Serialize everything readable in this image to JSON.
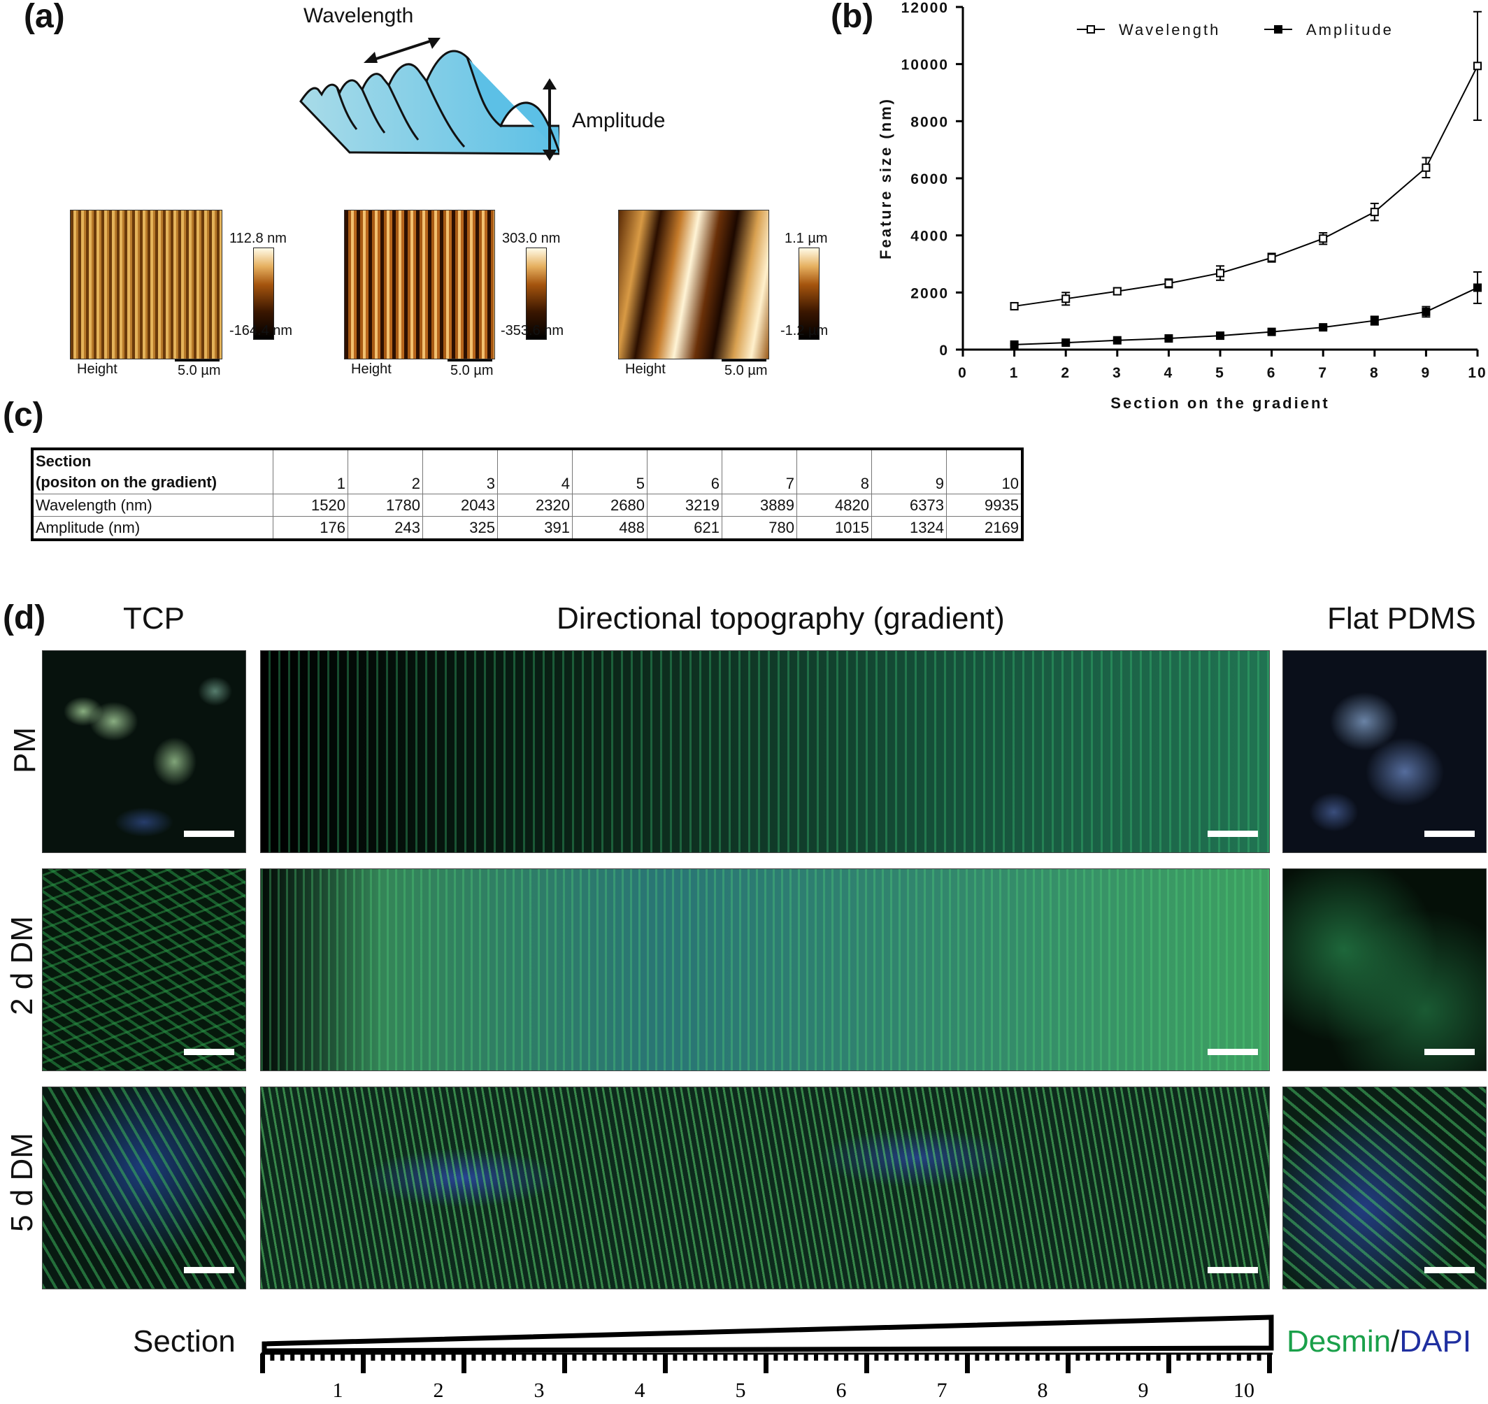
{
  "panel_a": {
    "label": "(a)",
    "schematic": {
      "wavelength_label": "Wavelength",
      "amplitude_label": "Amplitude"
    },
    "afm_images": [
      {
        "max_label": "112.8 nm",
        "min_label": "-164.4 nm",
        "caption_left": "Height",
        "scale_label": "5.0 µm"
      },
      {
        "max_label": "303.0 nm",
        "min_label": "-353.6 nm",
        "caption_left": "Height",
        "scale_label": "5.0 µm"
      },
      {
        "max_label": "1.1 µm",
        "min_label": "-1.2 µm",
        "caption_left": "Height",
        "scale_label": "5.0 µm"
      }
    ]
  },
  "panel_b": {
    "label": "(b)",
    "chart_data": {
      "type": "line",
      "xlabel": "Section on the gradient",
      "ylabel": "Feature size (nm)",
      "xlim": [
        0,
        10
      ],
      "ylim": [
        0,
        12000
      ],
      "x_ticks": [
        "0",
        "1",
        "2",
        "3",
        "4",
        "5",
        "6",
        "7",
        "8",
        "9",
        "10"
      ],
      "y_ticks": [
        "0",
        "2000",
        "4000",
        "6000",
        "8000",
        "10000",
        "12000"
      ],
      "legend_position": "top",
      "x": [
        1,
        2,
        3,
        4,
        5,
        6,
        7,
        8,
        9,
        10
      ],
      "series": [
        {
          "name": "Wavelength",
          "marker": "open-square",
          "values": [
            1520,
            1780,
            2043,
            2320,
            2680,
            3219,
            3889,
            4820,
            6373,
            9935
          ],
          "errors": [
            120,
            220,
            120,
            150,
            250,
            150,
            200,
            300,
            350,
            1900
          ]
        },
        {
          "name": "Amplitude",
          "marker": "filled-square",
          "values": [
            176,
            243,
            325,
            391,
            488,
            621,
            780,
            1015,
            1324,
            2169
          ],
          "errors": [
            30,
            30,
            30,
            30,
            40,
            40,
            60,
            150,
            180,
            550
          ]
        }
      ]
    }
  },
  "panel_c": {
    "label": "(c)",
    "header_line1": "Section",
    "header_line2": "(positon on the gradient)",
    "columns": [
      "1",
      "2",
      "3",
      "4",
      "5",
      "6",
      "7",
      "8",
      "9",
      "10"
    ],
    "rows": [
      {
        "label": "Wavelength (nm)",
        "values": [
          "1520",
          "1780",
          "2043",
          "2320",
          "2680",
          "3219",
          "3889",
          "4820",
          "6373",
          "9935"
        ]
      },
      {
        "label": "Amplitude (nm)",
        "values": [
          "176",
          "243",
          "325",
          "391",
          "488",
          "621",
          "780",
          "1015",
          "1324",
          "2169"
        ]
      }
    ]
  },
  "panel_d": {
    "label": "(d)",
    "col_titles": {
      "tcp": "TCP",
      "gradient": "Directional topography (gradient)",
      "flat": "Flat PDMS"
    },
    "row_labels": [
      "PM",
      "2 d DM",
      "5 d DM"
    ],
    "section_label": "Section",
    "section_numbers": [
      "1",
      "2",
      "3",
      "4",
      "5",
      "6",
      "7",
      "8",
      "9",
      "10"
    ],
    "stain_desmin": "Desmin",
    "stain_sep": "/",
    "stain_dapi": "DAPI",
    "colors": {
      "desmin": "#1aa04a",
      "dapi": "#1f2fa0"
    }
  }
}
